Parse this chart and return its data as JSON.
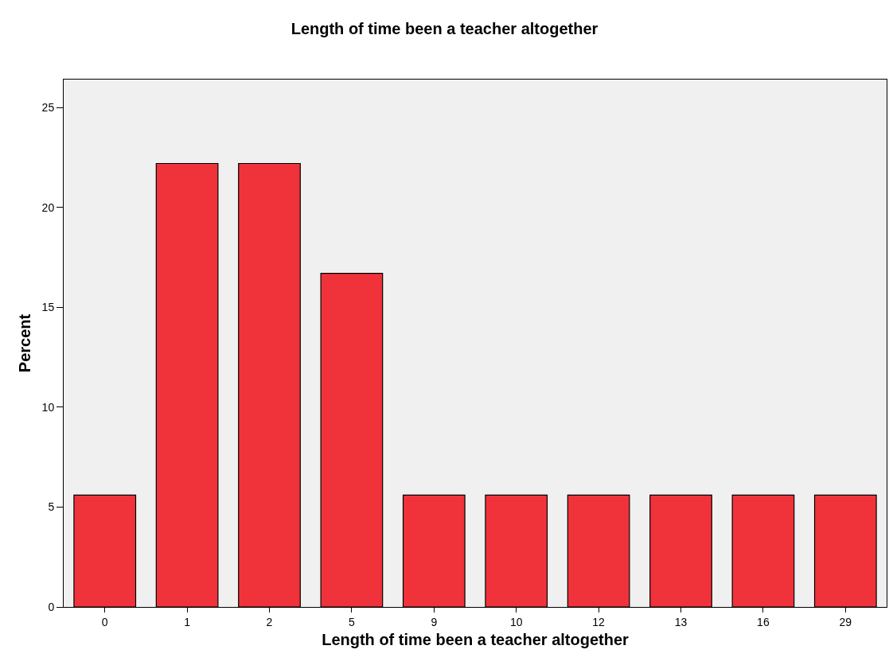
{
  "chart_data": {
    "type": "bar",
    "title": "Length of time been a teacher altogether",
    "xlabel": "Length of time been a teacher altogether",
    "ylabel": "Percent",
    "categories": [
      "0",
      "1",
      "2",
      "5",
      "9",
      "10",
      "12",
      "13",
      "16",
      "29"
    ],
    "values": [
      5.6,
      22.2,
      22.2,
      16.7,
      5.6,
      5.6,
      5.6,
      5.6,
      5.6,
      5.6
    ],
    "color": "#f0333b",
    "ylim": [
      0,
      26.4
    ],
    "yticks": [
      0,
      5,
      10,
      15,
      20,
      25
    ],
    "grid": false,
    "legend": false
  }
}
